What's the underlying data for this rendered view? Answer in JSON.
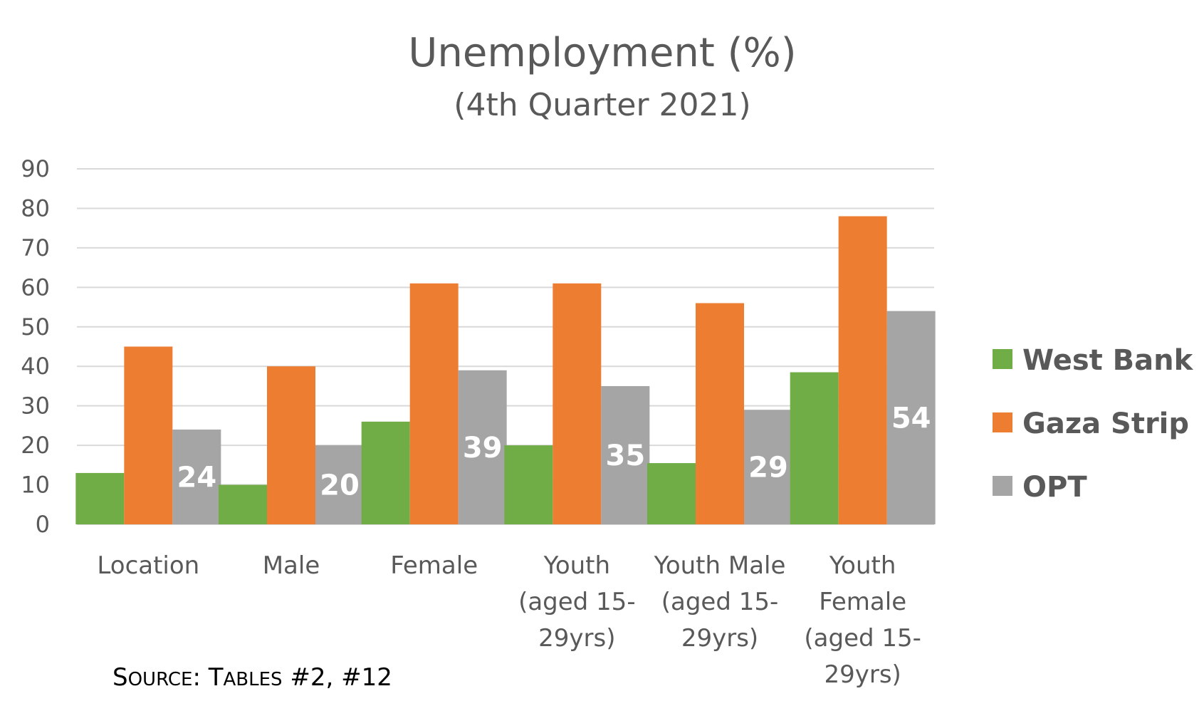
{
  "chart_data": {
    "type": "bar",
    "title": "Unemployment (%)",
    "subtitle": "(4th Quarter 2021)",
    "categories": [
      [
        "Location"
      ],
      [
        "Male"
      ],
      [
        "Female"
      ],
      [
        "Youth",
        "(aged 15-",
        "29yrs)"
      ],
      [
        "Youth Male",
        "(aged 15-",
        "29yrs)"
      ],
      [
        "Youth",
        "Female",
        "(aged 15-",
        "29yrs)"
      ]
    ],
    "series": [
      {
        "name": "West Bank",
        "color": "#70AD47",
        "values": [
          13,
          10,
          26,
          20,
          15.5,
          38.5
        ]
      },
      {
        "name": "Gaza Strip",
        "color": "#ED7D31",
        "values": [
          45,
          40,
          61,
          61,
          56,
          78
        ]
      },
      {
        "name": "OPT",
        "color": "#A5A5A5",
        "values": [
          24,
          20,
          39,
          35,
          29,
          54
        ],
        "data_labels": [
          "24",
          "20",
          "39",
          "35",
          "29",
          "54"
        ]
      }
    ],
    "ylim": [
      0,
      90
    ],
    "yticks": [
      0,
      10,
      20,
      30,
      40,
      50,
      60,
      70,
      80,
      90
    ],
    "grid": true,
    "legend_position": "right"
  },
  "source_note": {
    "cap1": "S",
    "small1": "OURCE",
    "mid": ": ",
    "cap2": "T",
    "small2": "ABLES",
    "rest": " #2, #12"
  }
}
